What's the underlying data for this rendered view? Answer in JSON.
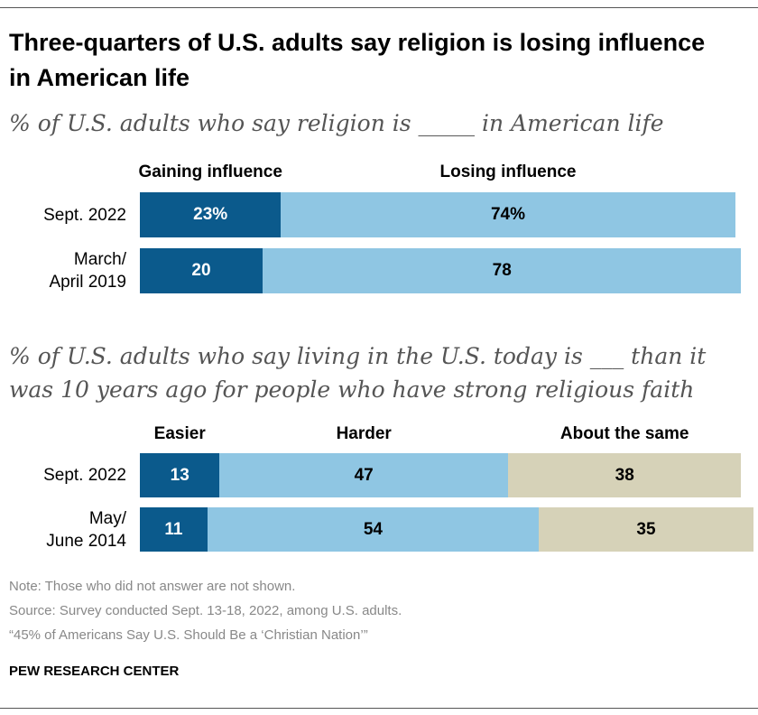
{
  "title": "Three-quarters of U.S. adults say religion is losing influence in American life",
  "chart_data": [
    {
      "type": "stacked-bar",
      "subtitle": "% of U.S. adults who say religion is _____ in American life",
      "categories": [
        "Sept. 2022",
        "March/\nApril 2019"
      ],
      "xlim": [
        0,
        100
      ],
      "series": [
        {
          "name": "Gaining influence",
          "color": "#0b5a8c",
          "values": [
            23,
            20
          ],
          "value_labels": [
            "23%",
            "20"
          ]
        },
        {
          "name": "Losing influence",
          "color": "#8fc6e3",
          "values": [
            74,
            78
          ],
          "value_labels": [
            "74%",
            "78"
          ]
        }
      ]
    },
    {
      "type": "stacked-bar",
      "subtitle": "% of U.S. adults who say living in the U.S. today is ___ than it was 10 years ago for people who have strong religious faith",
      "categories": [
        "Sept. 2022",
        "May/\nJune 2014"
      ],
      "xlim": [
        0,
        100
      ],
      "series": [
        {
          "name": "Easier",
          "color": "#0b5a8c",
          "values": [
            13,
            11
          ]
        },
        {
          "name": "Harder",
          "color": "#8fc6e3",
          "values": [
            47,
            54
          ]
        },
        {
          "name": "About the same",
          "color": "#d6d2b8",
          "values": [
            38,
            35
          ]
        }
      ]
    }
  ],
  "note": "Note: Those who did not answer are not shown.",
  "source": "Source: Survey conducted Sept. 13-18, 2022, among U.S. adults.",
  "report": "“45% of Americans Say U.S. Should Be a ‘Christian Nation’”",
  "logo": "PEW RESEARCH CENTER"
}
